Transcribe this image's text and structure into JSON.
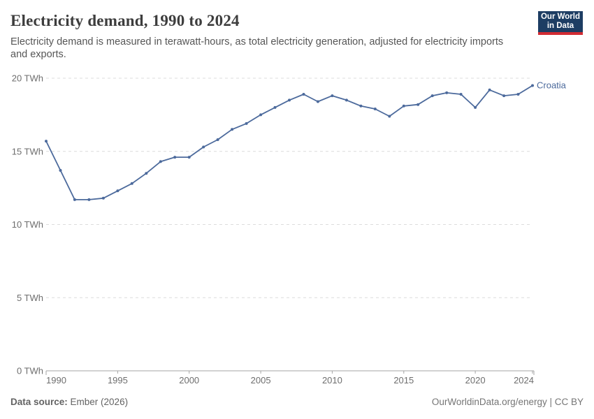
{
  "header": {
    "title": "Electricity demand, 1990 to 2024",
    "subtitle": "Electricity demand is measured in terawatt-hours, as total electricity generation, adjusted for electricity imports and exports.",
    "logo": {
      "line1": "Our World",
      "line2": "in Data",
      "bg_color": "#1d3d63",
      "bar_color": "#d12b33"
    }
  },
  "chart_data": {
    "type": "line",
    "title": "Electricity demand, 1990 to 2024",
    "unit": "TWh",
    "xlabel": "",
    "ylabel": "",
    "ylim": [
      0,
      20
    ],
    "grid": "horizontal-dashed",
    "legend_position": "end-of-line-label",
    "x": [
      1990,
      1991,
      1992,
      1993,
      1994,
      1995,
      1996,
      1997,
      1998,
      1999,
      2000,
      2001,
      2002,
      2003,
      2004,
      2005,
      2006,
      2007,
      2008,
      2009,
      2010,
      2011,
      2012,
      2013,
      2014,
      2015,
      2016,
      2017,
      2018,
      2019,
      2020,
      2021,
      2022,
      2023,
      2024
    ],
    "series": [
      {
        "name": "Croatia",
        "color": "#4C6A9C",
        "values": [
          15.7,
          13.7,
          11.7,
          11.7,
          11.8,
          12.3,
          12.8,
          13.5,
          14.3,
          14.6,
          14.6,
          15.3,
          15.8,
          16.5,
          16.9,
          17.5,
          18.0,
          18.5,
          18.9,
          18.4,
          18.8,
          18.5,
          18.1,
          17.9,
          17.4,
          18.1,
          18.2,
          18.8,
          19.0,
          18.9,
          18.0,
          19.2,
          18.8,
          18.9,
          19.5
        ]
      }
    ],
    "yticks": [
      {
        "value": 0,
        "label": "0 TWh"
      },
      {
        "value": 5,
        "label": "5 TWh"
      },
      {
        "value": 10,
        "label": "10 TWh"
      },
      {
        "value": 15,
        "label": "15 TWh"
      },
      {
        "value": 20,
        "label": "20 TWh"
      }
    ],
    "xticks": [
      {
        "value": 1990,
        "label": "1990"
      },
      {
        "value": 1995,
        "label": "1995"
      },
      {
        "value": 2000,
        "label": "2000"
      },
      {
        "value": 2005,
        "label": "2005"
      },
      {
        "value": 2010,
        "label": "2010"
      },
      {
        "value": 2015,
        "label": "2015"
      },
      {
        "value": 2020,
        "label": "2020"
      },
      {
        "value": 2024,
        "label": "2024"
      }
    ]
  },
  "footer": {
    "source_label": "Data source:",
    "source_value": " Ember (2026)",
    "attribution": "OurWorldinData.org/energy | CC BY"
  }
}
